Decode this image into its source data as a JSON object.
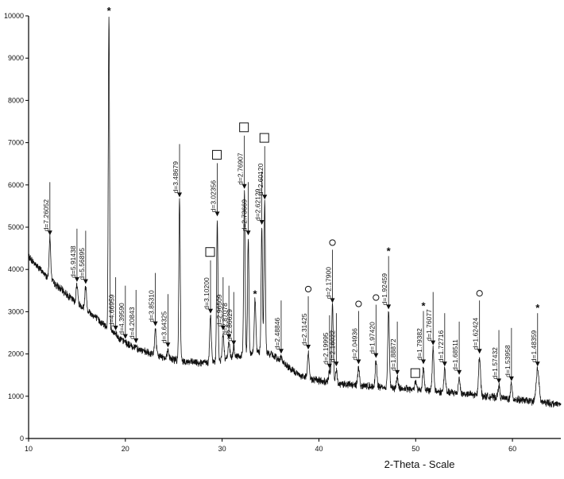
{
  "chart_data": {
    "type": "line",
    "xlabel": "2-Theta - Scale",
    "ylabel": "",
    "xlim": [
      10,
      65
    ],
    "ylim": [
      0,
      10000
    ],
    "x_ticks": [
      10,
      20,
      30,
      40,
      50,
      60
    ],
    "y_ticks": [
      0,
      1000,
      2000,
      3000,
      4000,
      5000,
      6000,
      7000,
      8000,
      9000,
      10000
    ],
    "grid": false,
    "background_points": [
      [
        10,
        4300
      ],
      [
        11,
        4050
      ],
      [
        12,
        3800
      ],
      [
        13,
        3600
      ],
      [
        14,
        3400
      ],
      [
        15,
        3200
      ],
      [
        16,
        3050
      ],
      [
        17,
        2850
      ],
      [
        18,
        2650
      ],
      [
        19,
        2450
      ],
      [
        20,
        2250
      ],
      [
        21,
        2150
      ],
      [
        22,
        2050
      ],
      [
        23,
        1980
      ],
      [
        24,
        1920
      ],
      [
        25,
        1870
      ],
      [
        26,
        1830
      ],
      [
        27,
        1800
      ],
      [
        28,
        1790
      ],
      [
        29,
        1800
      ],
      [
        30,
        1850
      ],
      [
        31,
        1900
      ],
      [
        32,
        1950
      ],
      [
        33,
        2000
      ],
      [
        34,
        2050
      ],
      [
        35,
        2000
      ],
      [
        36,
        1850
      ],
      [
        37,
        1650
      ],
      [
        38,
        1500
      ],
      [
        39,
        1420
      ],
      [
        40,
        1370
      ],
      [
        42,
        1300
      ],
      [
        44,
        1260
      ],
      [
        46,
        1220
      ],
      [
        48,
        1190
      ],
      [
        50,
        1160
      ],
      [
        52,
        1120
      ],
      [
        54,
        1080
      ],
      [
        56,
        1030
      ],
      [
        58,
        980
      ],
      [
        60,
        930
      ],
      [
        62,
        880
      ],
      [
        64,
        830
      ],
      [
        65,
        800
      ]
    ],
    "peaks": [
      {
        "x": 12.2,
        "y": 4750,
        "w": 0.12,
        "label": "d=7.26052",
        "symbol": ""
      },
      {
        "x": 15.0,
        "y": 3650,
        "w": 0.12,
        "label": "d=5.91438",
        "symbol": ""
      },
      {
        "x": 15.9,
        "y": 3600,
        "w": 0.12,
        "label": "d=5.56895",
        "symbol": ""
      },
      {
        "x": 18.3,
        "y": 10000,
        "w": 0.09,
        "label": "",
        "symbol": "*"
      },
      {
        "x": 19.0,
        "y": 2500,
        "w": 0.12,
        "label": "d=4.66959",
        "symbol": ""
      },
      {
        "x": 20.0,
        "y": 2300,
        "w": 0.12,
        "label": "d=4.39590",
        "symbol": ""
      },
      {
        "x": 21.1,
        "y": 2200,
        "w": 0.12,
        "label": "d=4.20843",
        "symbol": ""
      },
      {
        "x": 23.1,
        "y": 2600,
        "w": 0.12,
        "label": "d=3.85310",
        "symbol": ""
      },
      {
        "x": 24.4,
        "y": 2100,
        "w": 0.12,
        "label": "d=3.64325",
        "symbol": ""
      },
      {
        "x": 25.6,
        "y": 5650,
        "w": 0.1,
        "label": "d=3.48679",
        "symbol": ""
      },
      {
        "x": 28.8,
        "y": 2900,
        "w": 0.12,
        "label": "d=3.10200",
        "symbol": "□"
      },
      {
        "x": 29.5,
        "y": 5200,
        "w": 0.1,
        "label": "d=3.02356",
        "symbol": "□"
      },
      {
        "x": 30.1,
        "y": 2500,
        "w": 0.12,
        "label": "d=2.96509",
        "symbol": ""
      },
      {
        "x": 30.7,
        "y": 2300,
        "w": 0.12,
        "label": "d=2.87078",
        "symbol": ""
      },
      {
        "x": 31.2,
        "y": 2150,
        "w": 0.12,
        "label": "d=2.86629",
        "symbol": ""
      },
      {
        "x": 32.3,
        "y": 5850,
        "w": 0.1,
        "label": "d=2.76907",
        "symbol": "□"
      },
      {
        "x": 32.7,
        "y": 4750,
        "w": 0.1,
        "label": "d=2.73669",
        "symbol": ""
      },
      {
        "x": 33.4,
        "y": 3300,
        "w": 0.12,
        "label": "",
        "symbol": "*"
      },
      {
        "x": 34.1,
        "y": 5000,
        "w": 0.1,
        "label": "d=2.62129",
        "symbol": ""
      },
      {
        "x": 34.4,
        "y": 5600,
        "w": 0.1,
        "label": "d=2.60120",
        "symbol": "□"
      },
      {
        "x": 36.1,
        "y": 1950,
        "w": 0.12,
        "label": "d=2.48846",
        "symbol": ""
      },
      {
        "x": 38.9,
        "y": 2050,
        "w": 0.12,
        "label": "d=2.31425",
        "symbol": "O"
      },
      {
        "x": 41.1,
        "y": 1600,
        "w": 0.12,
        "label": "d=2.19995",
        "symbol": ""
      },
      {
        "x": 41.4,
        "y": 3150,
        "w": 0.12,
        "label": "d=2.17900",
        "symbol": "O"
      },
      {
        "x": 41.8,
        "y": 1650,
        "w": 0.12,
        "label": "d=2.16022",
        "symbol": ""
      },
      {
        "x": 44.1,
        "y": 1700,
        "w": 0.12,
        "label": "d=2.04936",
        "symbol": "O"
      },
      {
        "x": 45.9,
        "y": 1850,
        "w": 0.12,
        "label": "d=1.97420",
        "symbol": "O"
      },
      {
        "x": 47.2,
        "y": 3000,
        "w": 0.12,
        "label": "d=1.92459",
        "symbol": "*"
      },
      {
        "x": 48.1,
        "y": 1450,
        "w": 0.12,
        "label": "d=1.88872",
        "symbol": ""
      },
      {
        "x": 50.0,
        "y": 1350,
        "w": 0.15,
        "label": "",
        "symbol": "□"
      },
      {
        "x": 50.8,
        "y": 1700,
        "w": 0.12,
        "label": "d=1.79382",
        "symbol": "*"
      },
      {
        "x": 51.8,
        "y": 2150,
        "w": 0.12,
        "label": "d=1.76077",
        "symbol": ""
      },
      {
        "x": 53.0,
        "y": 1650,
        "w": 0.12,
        "label": "d=1.72716",
        "symbol": ""
      },
      {
        "x": 54.5,
        "y": 1450,
        "w": 0.12,
        "label": "d=1.68511",
        "symbol": ""
      },
      {
        "x": 56.6,
        "y": 1950,
        "w": 0.14,
        "label": "d=1.62424",
        "symbol": "O"
      },
      {
        "x": 58.6,
        "y": 1250,
        "w": 0.12,
        "label": "d=1.57432",
        "symbol": ""
      },
      {
        "x": 59.9,
        "y": 1300,
        "w": 0.12,
        "label": "d=1.53958",
        "symbol": ""
      },
      {
        "x": 62.6,
        "y": 1650,
        "w": 0.2,
        "label": "d=1.48359",
        "symbol": "*"
      }
    ]
  }
}
